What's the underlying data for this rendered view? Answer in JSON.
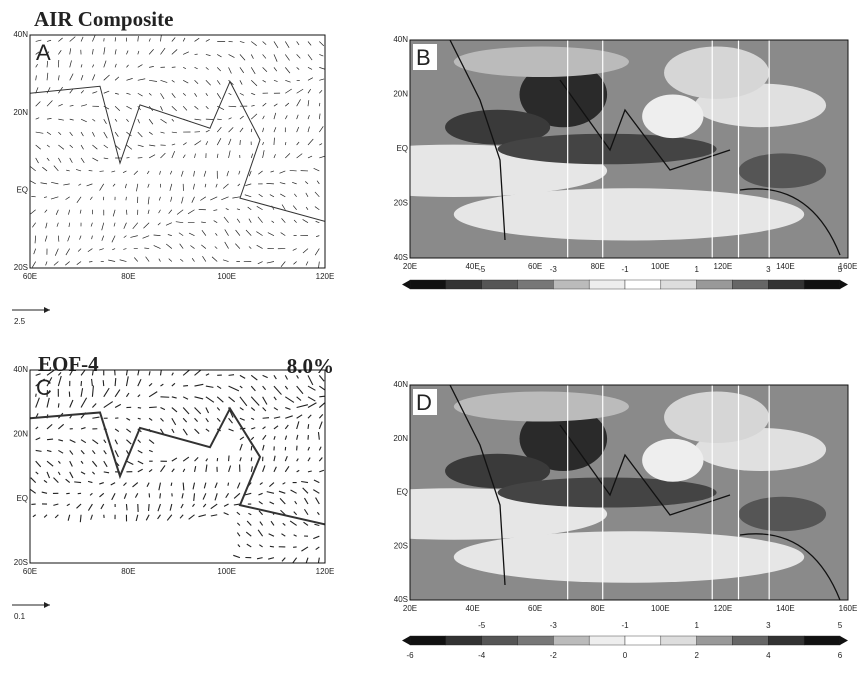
{
  "header": {
    "title": "AIR Composite"
  },
  "panels": [
    {
      "label": "A",
      "yticks": [
        "40N",
        "20N",
        "EQ",
        "20S"
      ],
      "xticks": [
        "60E",
        "80E",
        "100E",
        "120E"
      ],
      "reference": "2.5"
    },
    {
      "label": "B",
      "yticks": [
        "40N",
        "20N",
        "EQ",
        "20S",
        "40S"
      ],
      "xticks": [
        "20E",
        "40E",
        "60E",
        "80E",
        "100E",
        "120E",
        "140E",
        "160E"
      ],
      "colorbar": {
        "top": [
          "-5",
          "-3",
          "-1",
          "1",
          "3",
          "5"
        ]
      }
    },
    {
      "label": "C",
      "title": "EOF-4",
      "variance": "8.0%",
      "yticks": [
        "40N",
        "20N",
        "EQ",
        "20S"
      ],
      "xticks": [
        "60E",
        "80E",
        "100E",
        "120E"
      ],
      "reference": "0.1"
    },
    {
      "label": "D",
      "yticks": [
        "40N",
        "20N",
        "EQ",
        "20S",
        "40S"
      ],
      "xticks": [
        "20E",
        "40E",
        "60E",
        "80E",
        "100E",
        "120E",
        "140E",
        "160E"
      ],
      "colorbar": {
        "top": [
          "-5",
          "-3",
          "-1",
          "1",
          "3",
          "5"
        ],
        "bottom": [
          "-6",
          "-4",
          "-2",
          "0",
          "2",
          "4",
          "6"
        ]
      }
    }
  ]
}
